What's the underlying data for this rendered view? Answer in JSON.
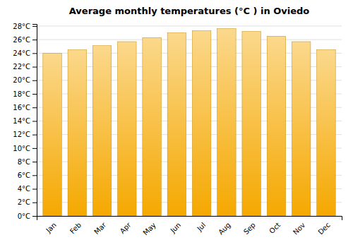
{
  "chart_data": {
    "type": "bar",
    "title": "Average monthly temperatures (°C ) in Oviedo",
    "categories": [
      "Jan",
      "Feb",
      "Mar",
      "Apr",
      "May",
      "Jun",
      "Jul",
      "Aug",
      "Sep",
      "Oct",
      "Nov",
      "Dec"
    ],
    "values": [
      24.0,
      24.5,
      25.1,
      25.7,
      26.3,
      27.0,
      27.3,
      27.6,
      27.2,
      26.5,
      25.7,
      24.5
    ],
    "color": "#F5A800",
    "ylim": [
      0,
      28.3
    ],
    "yticks": [
      {
        "value": 0,
        "label": "0°C"
      },
      {
        "value": 2,
        "label": "2°C"
      },
      {
        "value": 4,
        "label": "4°C"
      },
      {
        "value": 6,
        "label": "6°C"
      },
      {
        "value": 8,
        "label": "8°C"
      },
      {
        "value": 10,
        "label": "10°C"
      },
      {
        "value": 12,
        "label": "12°C"
      },
      {
        "value": 14,
        "label": "14°C"
      },
      {
        "value": 16,
        "label": "16°C"
      },
      {
        "value": 18,
        "label": "18°C"
      },
      {
        "value": 20,
        "label": "20°C"
      },
      {
        "value": 22,
        "label": "22°C"
      },
      {
        "value": 24,
        "label": "24°C"
      },
      {
        "value": 26,
        "label": "26°C"
      },
      {
        "value": 28,
        "label": "28°C"
      }
    ],
    "grid": true
  }
}
